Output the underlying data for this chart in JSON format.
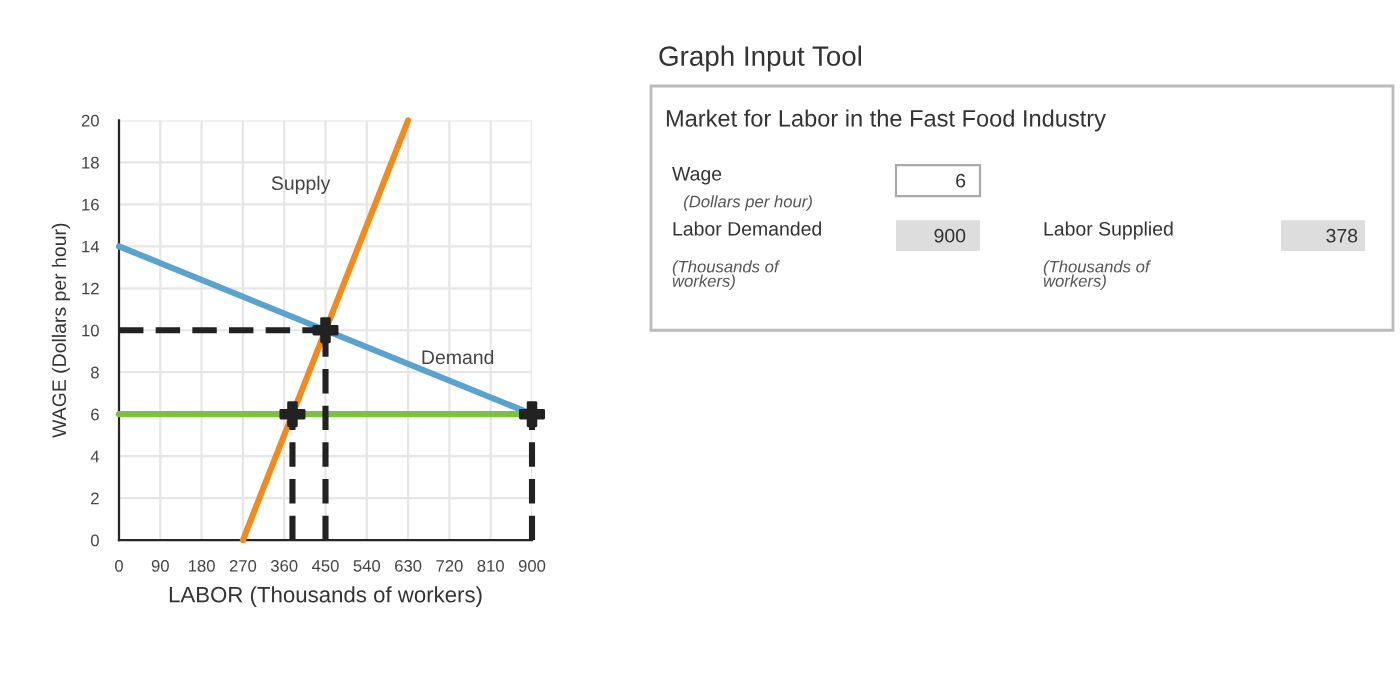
{
  "chart_data": {
    "type": "line",
    "xlabel": "LABOR (Thousands of workers)",
    "ylabel": "WAGE (Dollars per hour)",
    "xlim": [
      0,
      900
    ],
    "ylim": [
      0,
      20
    ],
    "xticks": [
      0,
      90,
      180,
      270,
      360,
      450,
      540,
      630,
      720,
      810,
      900
    ],
    "yticks": [
      0,
      2,
      4,
      6,
      8,
      10,
      12,
      14,
      16,
      18,
      20
    ],
    "grid": true,
    "series": [
      {
        "name": "Supply",
        "color": "#f28a1e",
        "x": [
          270,
          630
        ],
        "values": [
          0,
          20
        ]
      },
      {
        "name": "Demand",
        "color": "#5ba3cf",
        "x": [
          0,
          900
        ],
        "values": [
          14,
          6
        ]
      },
      {
        "color": "#7cc142",
        "x": [
          0,
          900
        ],
        "values": [
          6,
          6
        ]
      },
      {
        "color": "#222222",
        "line_style": "dashed",
        "x": [
          0,
          450
        ],
        "values": [
          10,
          10
        ]
      },
      {
        "color": "#222222",
        "line_style": "dashed",
        "x": [
          450,
          450
        ],
        "values": [
          0,
          10
        ]
      },
      {
        "color": "#222222",
        "line_style": "dashed",
        "x": [
          378,
          378
        ],
        "values": [
          0,
          6
        ]
      },
      {
        "color": "#222222",
        "line_style": "dashed",
        "x": [
          900,
          900
        ],
        "values": [
          0,
          6
        ]
      },
      {
        "type": "scatter",
        "color": "#222222",
        "marker": "cross",
        "x": [
          450,
          378,
          900
        ],
        "values": [
          10,
          6,
          6
        ]
      }
    ],
    "annotations": [
      "Graph Input Tool",
      "Market for Labor in the Fast Food Industry",
      "Wage",
      "(Dollars per hour)",
      "6",
      "Labor Demanded",
      "(Thousands of\nworkers)",
      "900",
      "Labor Supplied",
      "(Thousands of\nworkers)",
      "378"
    ]
  }
}
